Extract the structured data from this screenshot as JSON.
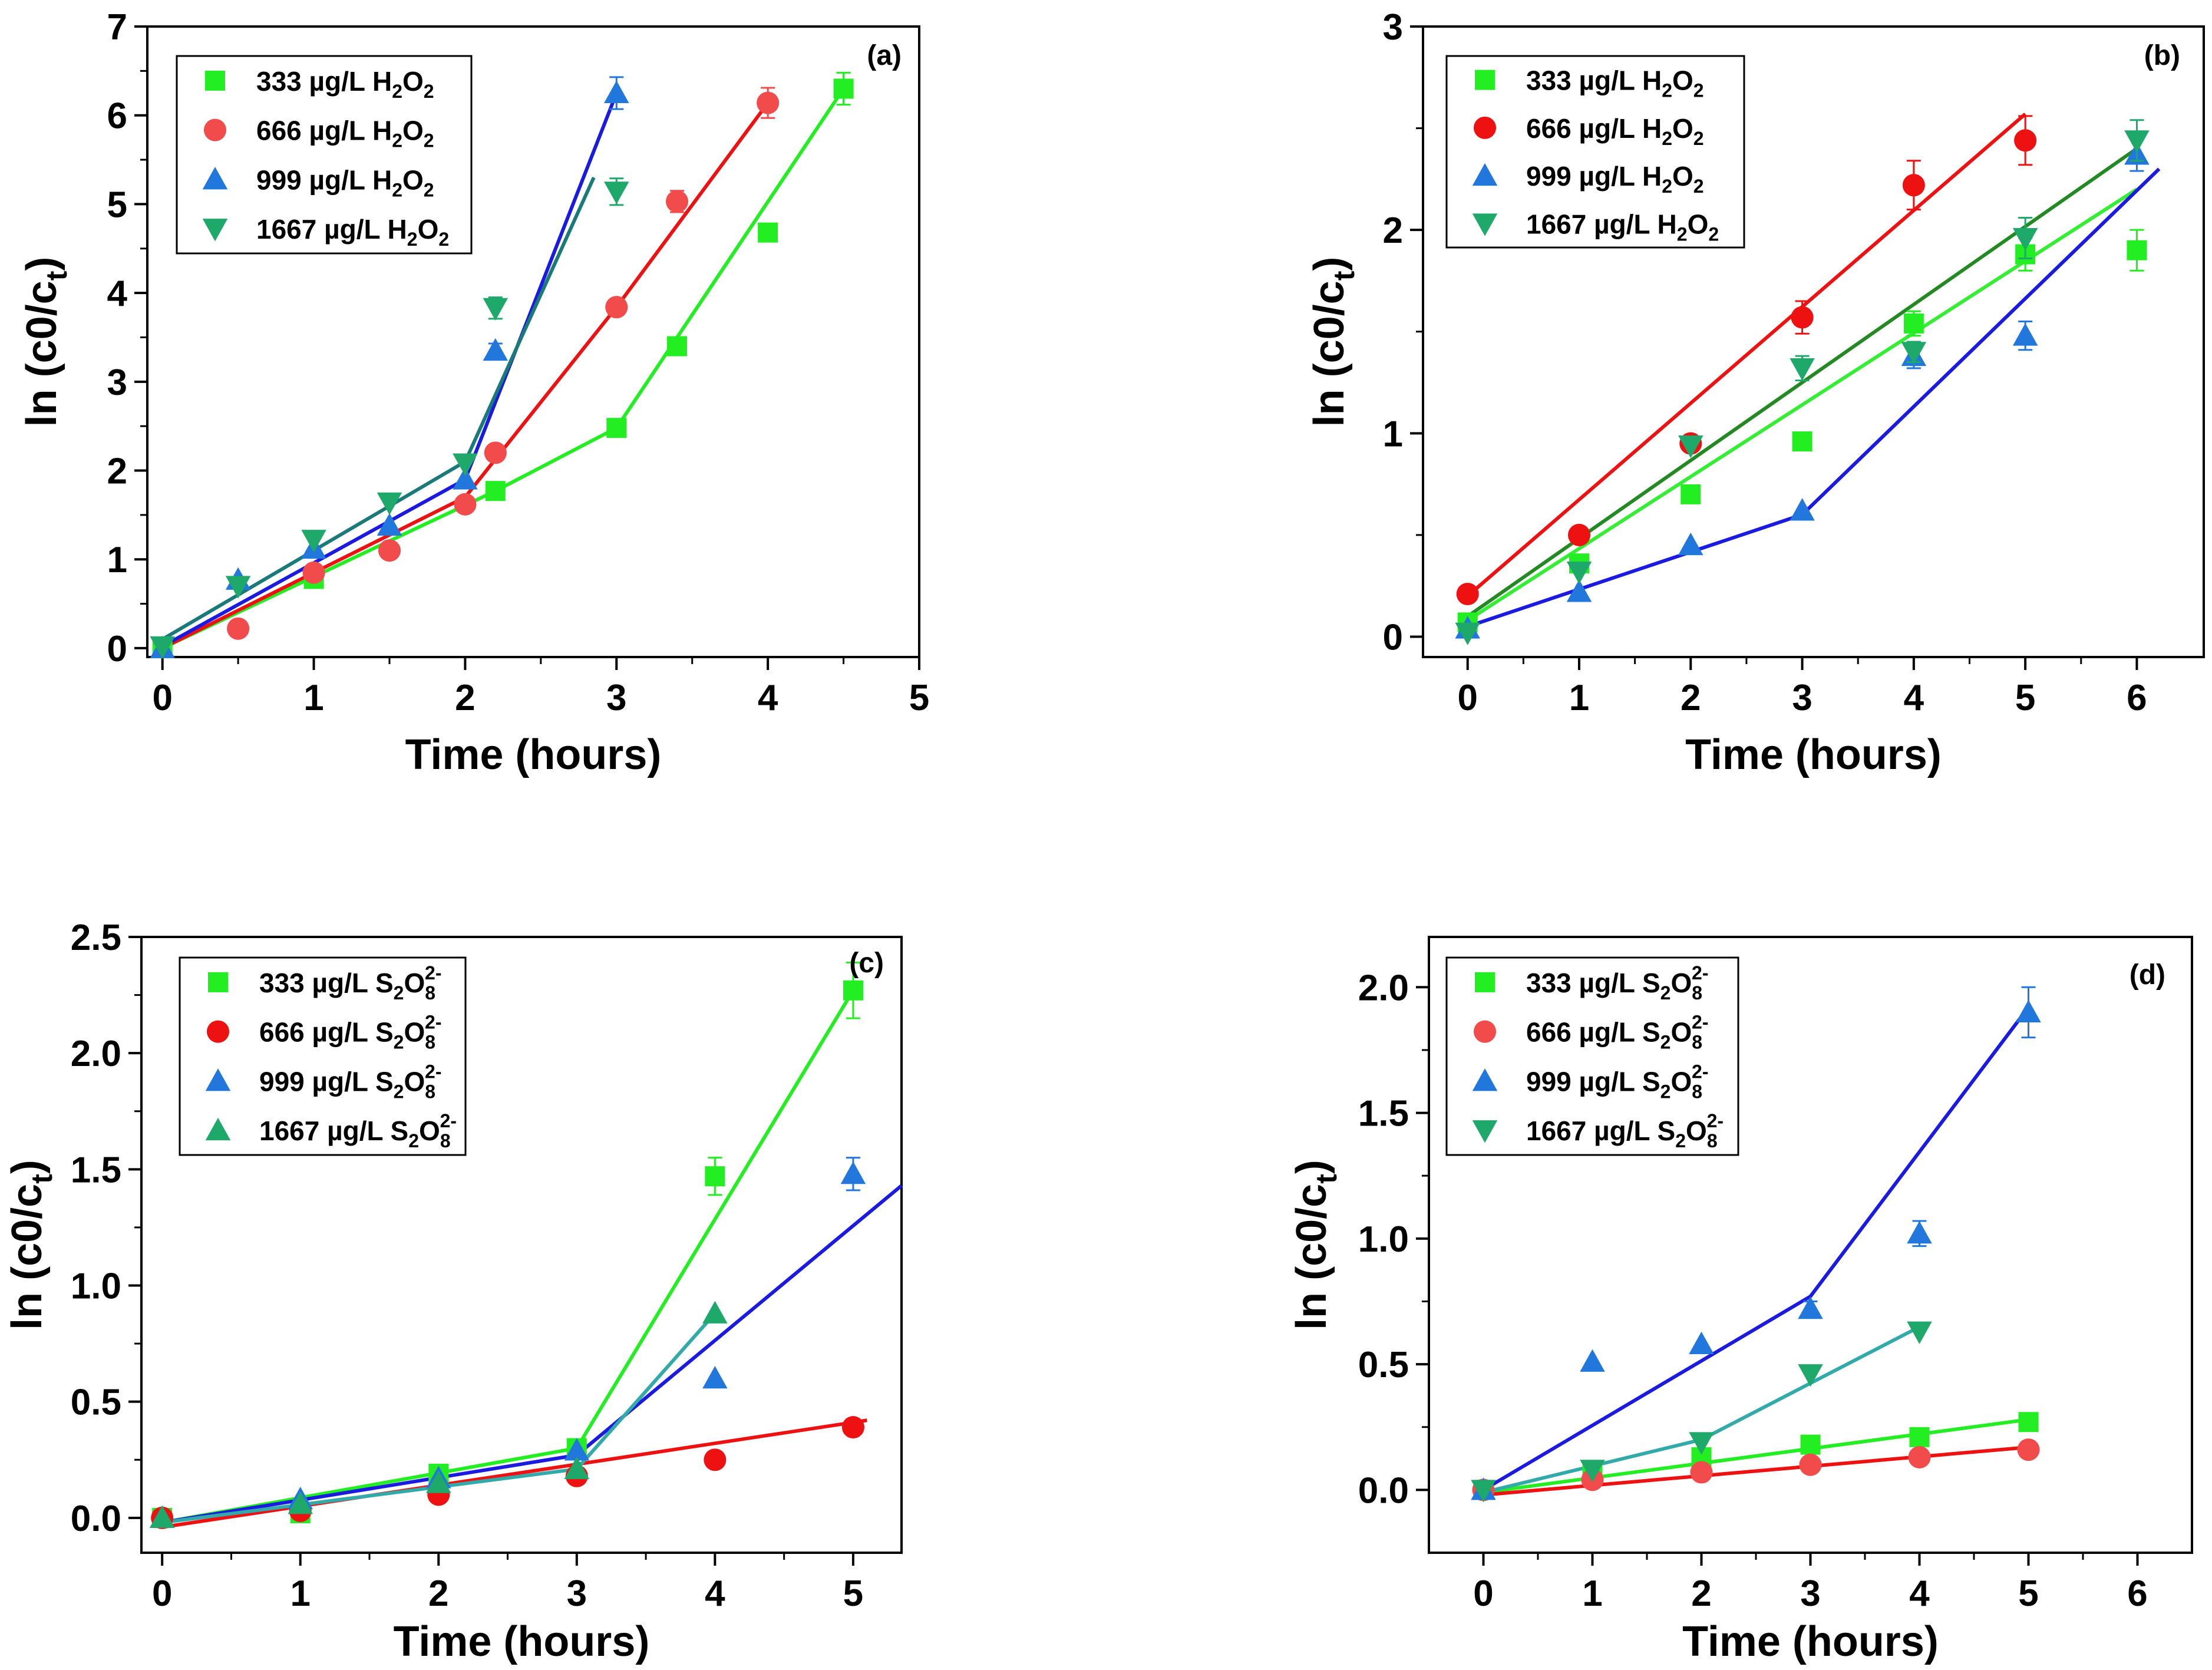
{
  "chart_data": [
    {
      "type": "scatter",
      "panel": "(a)",
      "xlabel": "Time (hours)",
      "ylabel": "ln (c0/ct)",
      "xlim": [
        -0.1,
        5
      ],
      "ylim": [
        -0.1,
        7
      ],
      "xticks": [
        0,
        1,
        2,
        3,
        4,
        5
      ],
      "yticks": [
        0,
        1,
        2,
        3,
        4,
        5,
        6,
        7
      ],
      "legend_position": "top-left",
      "series": [
        {
          "name": "333 µg/L H2O2",
          "legend": [
            "333 µg/L H",
            "2",
            "O",
            "2",
            ""
          ],
          "marker": "square",
          "color": "#22EE22",
          "line_color": "#22EE22",
          "x": [
            0,
            1,
            2.2,
            3,
            3.4,
            4,
            4.5
          ],
          "y": [
            0,
            0.78,
            1.77,
            2.48,
            3.4,
            4.68,
            6.3
          ],
          "err": [
            0,
            0,
            0,
            0,
            0,
            0.1,
            0.18
          ],
          "fit": [
            [
              0,
              0
            ],
            [
              2.2,
              1.77
            ],
            [
              3,
              2.48
            ],
            [
              4.5,
              6.3
            ]
          ]
        },
        {
          "name": "666 µg/L H2O2",
          "legend": [
            "666 µg/L H",
            "2",
            "O",
            "2",
            ""
          ],
          "marker": "circle",
          "color": "#F24B4B",
          "line_color": "#EE1111",
          "x": [
            0.5,
            1,
            1.5,
            2,
            2.2,
            3,
            3.4,
            4
          ],
          "y": [
            0.22,
            0.85,
            1.1,
            1.62,
            2.2,
            3.84,
            5.03,
            6.14
          ],
          "err": [
            0,
            0,
            0,
            0,
            0,
            0.06,
            0.12,
            0.17
          ],
          "fit": [
            [
              0,
              0
            ],
            [
              2,
              1.7
            ],
            [
              3,
              3.84
            ],
            [
              4,
              6.14
            ]
          ]
        },
        {
          "name": "999 µg/L H2O2",
          "legend": [
            "999 µg/L H",
            "2",
            "O",
            "2",
            ""
          ],
          "marker": "triangle-up",
          "color": "#2277DD",
          "line_color": "#1A1AE0",
          "x": [
            0,
            0.5,
            1,
            1.5,
            2,
            2.2,
            3
          ],
          "y": [
            0,
            0.77,
            1.12,
            1.38,
            1.9,
            3.35,
            6.25
          ],
          "err": [
            0,
            0,
            0,
            0,
            0,
            0.08,
            0.18
          ],
          "fit": [
            [
              0,
              0.02
            ],
            [
              2,
              1.9
            ],
            [
              3,
              6.25
            ]
          ]
        },
        {
          "name": "1667 µg/L H2O2",
          "legend": [
            "1667 µg/L H",
            "2",
            "O",
            "2",
            ""
          ],
          "marker": "triangle-down",
          "color": "#1EA86A",
          "line_color": "#1A7A7A",
          "x": [
            0,
            0.5,
            1,
            1.5,
            2,
            2.2,
            3
          ],
          "y": [
            0.02,
            0.7,
            1.22,
            1.64,
            2.08,
            3.83,
            5.14
          ],
          "err": [
            0,
            0,
            0,
            0,
            0,
            0.12,
            0.15
          ],
          "fit": [
            [
              0,
              0.1
            ],
            [
              2,
              2.1
            ],
            [
              2.85,
              5.3
            ]
          ]
        }
      ]
    },
    {
      "type": "scatter",
      "panel": "(b)",
      "xlabel": "Time (hours)",
      "ylabel": "ln (c0/ct)",
      "xlim": [
        -0.4,
        6.6
      ],
      "ylim": [
        -0.1,
        3
      ],
      "xticks": [
        0,
        1,
        2,
        3,
        4,
        5,
        6
      ],
      "yticks": [
        0,
        1,
        2,
        3
      ],
      "legend_position": "top-left",
      "series": [
        {
          "name": "333 µg/L H2O2",
          "legend": [
            "333 µg/L H",
            "2",
            "O",
            "2",
            ""
          ],
          "marker": "square",
          "color": "#22EE22",
          "line_color": "#33EE33",
          "x": [
            0,
            1,
            2,
            3,
            4,
            5,
            6
          ],
          "y": [
            0.07,
            0.36,
            0.7,
            0.96,
            1.54,
            1.88,
            1.9
          ],
          "err": [
            0,
            0,
            0,
            0,
            0.06,
            0.08,
            0.1
          ],
          "fit": [
            [
              0,
              0.08
            ],
            [
              6,
              2.2
            ]
          ]
        },
        {
          "name": "666 µg/L H2O2",
          "legend": [
            "666 µg/L H",
            "2",
            "O",
            "2",
            ""
          ],
          "marker": "circle",
          "color": "#EE1111",
          "line_color": "#EE1111",
          "x": [
            0,
            1,
            2,
            3,
            4,
            5
          ],
          "y": [
            0.21,
            0.5,
            0.95,
            1.57,
            2.22,
            2.44
          ],
          "err": [
            0,
            0,
            0,
            0.08,
            0.12,
            0.12
          ],
          "fit": [
            [
              0,
              0.2
            ],
            [
              5,
              2.57
            ]
          ]
        },
        {
          "name": "999 µg/L H2O2",
          "legend": [
            "999 µg/L H",
            "2",
            "O",
            "2",
            ""
          ],
          "marker": "triangle-up",
          "color": "#2277DD",
          "line_color": "#1A1AE0",
          "x": [
            0,
            1,
            2,
            3,
            4,
            5,
            6
          ],
          "y": [
            0.04,
            0.22,
            0.45,
            0.62,
            1.38,
            1.48,
            2.37
          ],
          "err": [
            0,
            0,
            0,
            0,
            0.06,
            0.07,
            0.08
          ],
          "fit": [
            [
              0,
              0.05
            ],
            [
              3,
              0.6
            ],
            [
              6.2,
              2.3
            ]
          ]
        },
        {
          "name": "1667 µg/L H2O2",
          "legend": [
            "1667 µg/L H",
            "2",
            "O",
            "2",
            ""
          ],
          "marker": "triangle-down",
          "color": "#1EA86A",
          "line_color": "#238A23",
          "x": [
            0,
            1,
            2,
            3,
            4,
            5,
            6
          ],
          "y": [
            0.02,
            0.32,
            0.94,
            1.32,
            1.4,
            1.96,
            2.44
          ],
          "err": [
            0,
            0,
            0,
            0.06,
            0.05,
            0.1,
            0.1
          ],
          "fit": [
            [
              0,
              0.1
            ],
            [
              6,
              2.4
            ]
          ]
        }
      ]
    },
    {
      "type": "scatter",
      "panel": "(c)",
      "xlabel": "Time (hours)",
      "ylabel": "ln (c0/ct)",
      "xlim": [
        -0.15,
        5.35
      ],
      "ylim": [
        -0.15,
        2.5
      ],
      "xticks": [
        0,
        1,
        2,
        3,
        4,
        5
      ],
      "yticks": [
        0.0,
        0.5,
        1.0,
        1.5,
        2.0,
        2.5
      ],
      "tick_decimals": 1,
      "legend_position": "top-left",
      "series": [
        {
          "name": "333 µg/L S2O8 2-",
          "legend": [
            "333 µg/L S",
            "2",
            "O",
            "8",
            "2-"
          ],
          "marker": "square",
          "color": "#22EE22",
          "line_color": "#22EE22",
          "x": [
            0,
            1,
            2,
            3,
            4,
            5
          ],
          "y": [
            0.0,
            0.02,
            0.19,
            0.3,
            1.47,
            2.27
          ],
          "err": [
            0,
            0,
            0,
            0,
            0.08,
            0.12
          ],
          "fit": [
            [
              0,
              -0.02
            ],
            [
              3,
              0.3
            ],
            [
              5,
              2.27
            ]
          ]
        },
        {
          "name": "666 µg/L S2O8 2-",
          "legend": [
            "666 µg/L S",
            "2",
            "O",
            "8",
            "2-"
          ],
          "marker": "circle",
          "color": "#EE1111",
          "line_color": "#EE1111",
          "x": [
            0,
            1,
            2,
            3,
            4,
            5
          ],
          "y": [
            0.0,
            0.03,
            0.1,
            0.18,
            0.25,
            0.39
          ],
          "err": [
            0,
            0,
            0,
            0,
            0,
            0
          ],
          "fit": [
            [
              0,
              -0.04
            ],
            [
              5.1,
              0.42
            ]
          ]
        },
        {
          "name": "999 µg/L S2O8 2-",
          "legend": [
            "999 µg/L S",
            "2",
            "O",
            "8",
            "2-"
          ],
          "marker": "triangle-up",
          "color": "#2277DD",
          "line_color": "#1A1AE0",
          "x": [
            0,
            1,
            2,
            3,
            4,
            5
          ],
          "y": [
            0.0,
            0.08,
            0.17,
            0.29,
            0.6,
            1.48
          ],
          "err": [
            0,
            0,
            0,
            0,
            0,
            0.07
          ],
          "fit": [
            [
              0,
              -0.02
            ],
            [
              3,
              0.27
            ],
            [
              5.35,
              1.43
            ]
          ]
        },
        {
          "name": "1667 µg/L S2O8 2-",
          "legend": [
            "1667 µg/L S",
            "2",
            "O",
            "8",
            "2-"
          ],
          "marker": "triangle-up",
          "color": "#1EA86A",
          "line_color": "#33AAAA",
          "x": [
            0,
            1,
            2,
            3,
            4
          ],
          "y": [
            0.0,
            0.06,
            0.15,
            0.21,
            0.88
          ],
          "err": [
            0,
            0,
            0,
            0,
            0
          ],
          "fit": [
            [
              0,
              -0.02
            ],
            [
              3,
              0.21
            ],
            [
              4,
              0.88
            ]
          ]
        }
      ]
    },
    {
      "type": "scatter",
      "panel": "(d)",
      "xlabel": "Time (hours)",
      "ylabel": "ln (c0/ct)",
      "xlim": [
        -0.5,
        6.5
      ],
      "ylim": [
        -0.25,
        2.2
      ],
      "xticks": [
        0,
        1,
        2,
        3,
        4,
        5,
        6
      ],
      "yticks": [
        0.0,
        0.5,
        1.0,
        1.5,
        2.0
      ],
      "tick_decimals": 1,
      "legend_position": "top-left",
      "series": [
        {
          "name": "333 µg/L S2O8 2-",
          "legend": [
            "333 µg/L S",
            "2",
            "O",
            "8",
            "2-"
          ],
          "marker": "square",
          "color": "#22EE22",
          "line_color": "#22EE22",
          "x": [
            0,
            1,
            2,
            3,
            4,
            5
          ],
          "y": [
            0.0,
            0.06,
            0.13,
            0.18,
            0.21,
            0.27
          ],
          "err": [
            0,
            0,
            0,
            0,
            0,
            0
          ],
          "fit": [
            [
              0,
              -0.01
            ],
            [
              5,
              0.28
            ]
          ]
        },
        {
          "name": "666 µg/L S2O8 2-",
          "legend": [
            "666 µg/L S",
            "2",
            "O",
            "8",
            "2-"
          ],
          "marker": "circle",
          "color": "#F24B4B",
          "line_color": "#EE1111",
          "x": [
            0,
            1,
            2,
            3,
            4,
            5
          ],
          "y": [
            0.0,
            0.04,
            0.07,
            0.1,
            0.13,
            0.16
          ],
          "err": [
            0,
            0,
            0,
            0,
            0,
            0
          ],
          "fit": [
            [
              0,
              -0.02
            ],
            [
              5,
              0.17
            ]
          ]
        },
        {
          "name": "999 µg/L S2O8 2-",
          "legend": [
            "999 µg/L S",
            "2",
            "O",
            "8",
            "2-"
          ],
          "marker": "triangle-up",
          "color": "#2277DD",
          "line_color": "#1A1AE0",
          "x": [
            0,
            1,
            2,
            3,
            4,
            5
          ],
          "y": [
            0.0,
            0.51,
            0.58,
            0.72,
            1.02,
            1.9
          ],
          "err": [
            0,
            0,
            0,
            0.03,
            0.05,
            0.1
          ],
          "fit": [
            [
              0,
              0.0
            ],
            [
              3,
              0.77
            ],
            [
              5,
              1.92
            ]
          ]
        },
        {
          "name": "1667 µg/L S2O8 2-",
          "legend": [
            "1667 µg/L S",
            "2",
            "O",
            "8",
            "2-"
          ],
          "marker": "triangle-down",
          "color": "#1EA86A",
          "line_color": "#33AAAA",
          "x": [
            0,
            1,
            2,
            3,
            4
          ],
          "y": [
            0.0,
            0.08,
            0.19,
            0.46,
            0.63
          ],
          "err": [
            0,
            0,
            0,
            0,
            0
          ],
          "fit": [
            [
              0,
              -0.01
            ],
            [
              2,
              0.2
            ],
            [
              4.05,
              0.66
            ]
          ]
        }
      ]
    }
  ]
}
